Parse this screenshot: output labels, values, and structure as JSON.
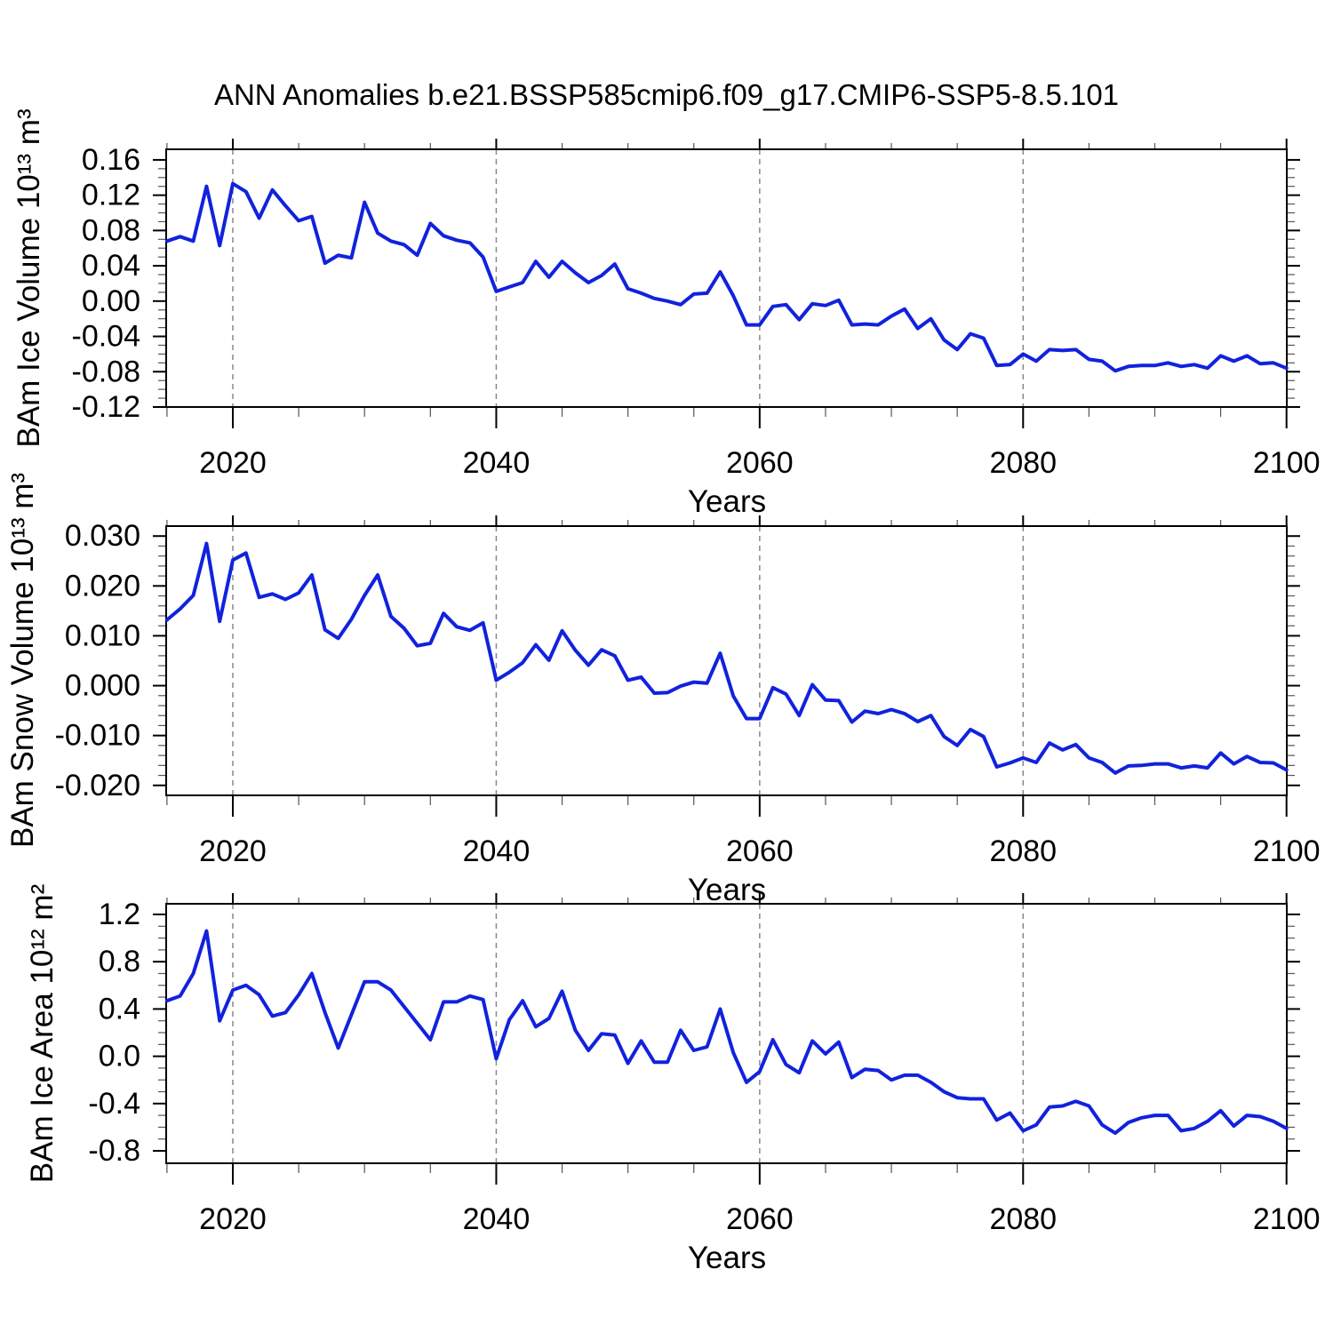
{
  "title": "ANN Anomalies b.e21.BSSP585cmip6.f09_g17.CMIP6-SSP5-8.5.101",
  "line_color": "#1122dd",
  "grid_color": "#888888",
  "chart_data": [
    {
      "type": "line",
      "series_name": "BAm Ice Volume anomaly",
      "ylabel": "BAm Ice Volume 10¹³ m³",
      "xlabel": "Years",
      "x_start": 2015,
      "x_step": 1,
      "values": [
        0.068,
        0.073,
        0.068,
        0.13,
        0.063,
        0.133,
        0.124,
        0.094,
        0.126,
        0.108,
        0.091,
        0.096,
        0.043,
        0.052,
        0.049,
        0.112,
        0.077,
        0.068,
        0.064,
        0.052,
        0.088,
        0.074,
        0.069,
        0.066,
        0.05,
        0.011,
        0.016,
        0.021,
        0.045,
        0.027,
        0.045,
        0.032,
        0.021,
        0.029,
        0.042,
        0.014,
        0.009,
        0.003,
        0.0,
        -0.004,
        0.008,
        0.009,
        0.033,
        0.006,
        -0.027,
        -0.027,
        -0.006,
        -0.004,
        -0.021,
        -0.003,
        -0.005,
        0.001,
        -0.027,
        -0.026,
        -0.027,
        -0.017,
        -0.009,
        -0.031,
        -0.02,
        -0.044,
        -0.055,
        -0.037,
        -0.042,
        -0.073,
        -0.072,
        -0.06,
        -0.068,
        -0.055,
        -0.056,
        -0.055,
        -0.066,
        -0.068,
        -0.079,
        -0.074,
        -0.073,
        -0.073,
        -0.07,
        -0.074,
        -0.072,
        -0.076,
        -0.062,
        -0.068,
        -0.062,
        -0.071,
        -0.07,
        -0.076
      ],
      "ylim": [
        -0.12,
        0.172
      ],
      "yticks": [
        0.16,
        0.12,
        0.08,
        0.04,
        0.0,
        -0.04,
        -0.08,
        -0.12
      ],
      "ytick_labels": [
        "0.16",
        "0.12",
        "0.08",
        "0.04",
        "0.00",
        "-0.04",
        "-0.08",
        "-0.12"
      ],
      "y_minor_step": 0.01,
      "xlim": [
        2014.94,
        2100.02
      ],
      "xticks": [
        2020,
        2060,
        2040,
        2080,
        2100
      ],
      "xtick_labels": [
        "2020",
        "2040",
        "2060",
        "2080",
        "2100"
      ],
      "xtick_values": [
        2020,
        2040,
        2060,
        2080,
        2100
      ],
      "x_minor_step": 5,
      "grid_x": [
        2020,
        2040,
        2060,
        2080
      ]
    },
    {
      "type": "line",
      "series_name": "BAm Snow Volume anomaly",
      "ylabel": "BAm Snow Volume 10¹³ m³",
      "xlabel": "Years",
      "x_start": 2015,
      "x_step": 1,
      "values": [
        0.0132,
        0.0154,
        0.0181,
        0.0285,
        0.0129,
        0.0252,
        0.0266,
        0.0177,
        0.0184,
        0.0173,
        0.0186,
        0.0222,
        0.0112,
        0.0095,
        0.0133,
        0.0181,
        0.0222,
        0.0139,
        0.0115,
        0.008,
        0.0085,
        0.0145,
        0.0118,
        0.0111,
        0.0126,
        0.0011,
        0.0027,
        0.0046,
        0.0082,
        0.0051,
        0.011,
        0.0071,
        0.0041,
        0.0072,
        0.006,
        0.0011,
        0.0017,
        -0.0015,
        -0.0014,
        -0.0001,
        0.0007,
        0.0005,
        0.0065,
        -0.0021,
        -0.0066,
        -0.0066,
        -0.0004,
        -0.0017,
        -0.006,
        0.0002,
        -0.0029,
        -0.003,
        -0.0073,
        -0.0051,
        -0.0056,
        -0.0048,
        -0.0056,
        -0.0072,
        -0.006,
        -0.0102,
        -0.012,
        -0.0088,
        -0.0102,
        -0.0163,
        -0.0155,
        -0.0145,
        -0.0154,
        -0.0115,
        -0.0129,
        -0.0118,
        -0.0145,
        -0.0154,
        -0.0175,
        -0.0161,
        -0.016,
        -0.0157,
        -0.0157,
        -0.0165,
        -0.0161,
        -0.0165,
        -0.0135,
        -0.0157,
        -0.0142,
        -0.0154,
        -0.0155,
        -0.0169
      ],
      "ylim": [
        -0.022,
        0.032
      ],
      "yticks": [
        0.03,
        0.02,
        0.01,
        0.0,
        -0.01,
        -0.02
      ],
      "ytick_labels": [
        "0.030",
        "0.020",
        "0.010",
        "0.000",
        "-0.010",
        "-0.020"
      ],
      "y_minor_step": 0.002,
      "xlim": [
        2014.94,
        2100.02
      ],
      "xtick_labels": [
        "2020",
        "2040",
        "2060",
        "2080",
        "2100"
      ],
      "xtick_values": [
        2020,
        2040,
        2060,
        2080,
        2100
      ],
      "x_minor_step": 5,
      "grid_x": [
        2020,
        2040,
        2060,
        2080
      ]
    },
    {
      "type": "line",
      "series_name": "BAm Ice Area anomaly",
      "ylabel": "BAm Ice Area 10¹² m²",
      "xlabel": "Years",
      "x_start": 2015,
      "x_step": 1,
      "values": [
        0.47,
        0.51,
        0.7,
        1.06,
        0.3,
        0.56,
        0.6,
        0.52,
        0.34,
        0.37,
        0.52,
        0.7,
        0.37,
        0.07,
        0.35,
        0.63,
        0.63,
        0.56,
        0.42,
        0.28,
        0.14,
        0.46,
        0.46,
        0.51,
        0.48,
        -0.02,
        0.31,
        0.47,
        0.25,
        0.32,
        0.55,
        0.22,
        0.05,
        0.19,
        0.18,
        -0.06,
        0.13,
        -0.05,
        -0.05,
        0.22,
        0.05,
        0.08,
        0.4,
        0.03,
        -0.22,
        -0.13,
        0.14,
        -0.07,
        -0.14,
        0.13,
        0.02,
        0.12,
        -0.18,
        -0.11,
        -0.12,
        -0.2,
        -0.16,
        -0.16,
        -0.22,
        -0.3,
        -0.35,
        -0.36,
        -0.36,
        -0.54,
        -0.48,
        -0.63,
        -0.58,
        -0.43,
        -0.42,
        -0.38,
        -0.42,
        -0.58,
        -0.65,
        -0.56,
        -0.52,
        -0.5,
        -0.5,
        -0.63,
        -0.61,
        -0.55,
        -0.46,
        -0.59,
        -0.5,
        -0.51,
        -0.55,
        -0.61
      ],
      "ylim": [
        -0.905,
        1.29
      ],
      "yticks": [
        1.2,
        0.8,
        0.4,
        0.0,
        -0.4,
        -0.8
      ],
      "ytick_labels": [
        "1.2",
        "0.8",
        "0.4",
        "0.0",
        "-0.4",
        "-0.8"
      ],
      "y_minor_step": 0.1,
      "xlim": [
        2014.94,
        2100.02
      ],
      "xtick_labels": [
        "2020",
        "2040",
        "2060",
        "2080",
        "2100"
      ],
      "xtick_values": [
        2020,
        2040,
        2060,
        2080,
        2100
      ],
      "x_minor_step": 5,
      "grid_x": [
        2020,
        2040,
        2060,
        2080
      ]
    }
  ]
}
